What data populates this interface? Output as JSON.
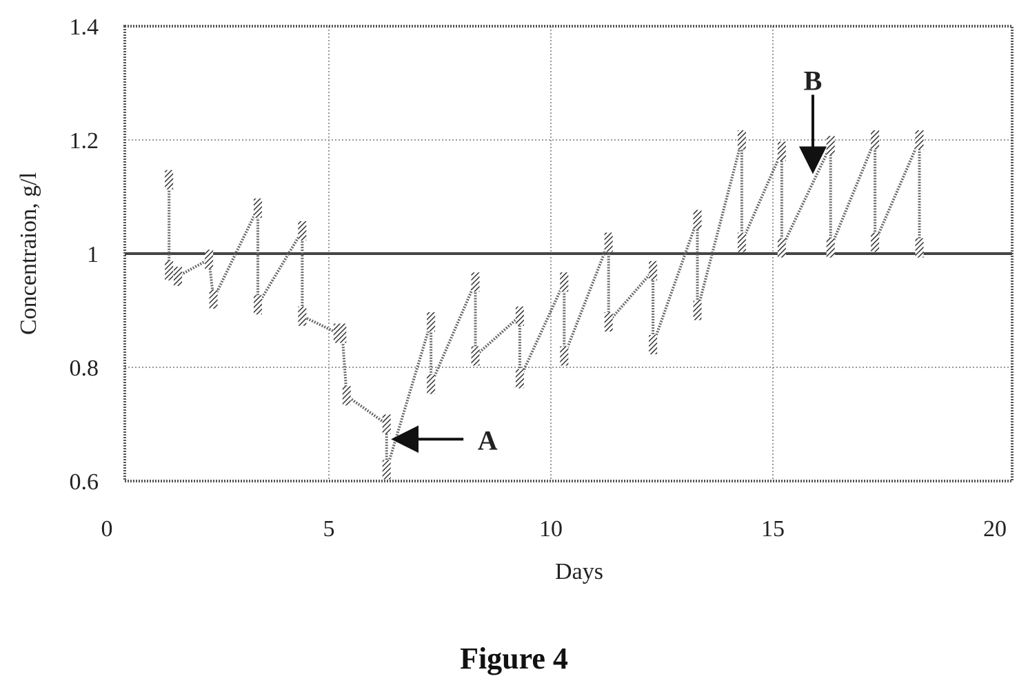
{
  "chart_data": {
    "type": "line",
    "xlabel": "Days",
    "ylabel": "Concentraion, g/l",
    "xlim": [
      0,
      20
    ],
    "ylim": [
      0.6,
      1.4
    ],
    "xticks": [
      "0",
      "5",
      "10",
      "15",
      "20"
    ],
    "yticks": [
      "0.6",
      "0.8",
      "1",
      "1.2",
      "1.4"
    ],
    "grid": true,
    "reference_line": {
      "y": 1.0
    },
    "series": [
      {
        "x": [
          1.4,
          1.4,
          1.6,
          2.3,
          2.4,
          3.4,
          3.4,
          4.4,
          4.4,
          5.2,
          5.3,
          5.4,
          6.3,
          6.3,
          7.3,
          7.3,
          8.3,
          8.3,
          9.3,
          9.3,
          10.3,
          10.3,
          11.3,
          11.3,
          12.3,
          12.3,
          13.3,
          13.3,
          14.3,
          14.3,
          15.2,
          15.2,
          16.3,
          16.3,
          17.3,
          17.3,
          18.3,
          18.3
        ],
        "y": [
          1.13,
          0.97,
          0.96,
          0.99,
          0.92,
          1.08,
          0.91,
          1.04,
          0.89,
          0.86,
          0.86,
          0.75,
          0.7,
          0.62,
          0.88,
          0.77,
          0.95,
          0.82,
          0.89,
          0.78,
          0.95,
          0.82,
          1.02,
          0.88,
          0.97,
          0.84,
          1.06,
          0.9,
          1.2,
          1.02,
          1.18,
          1.01,
          1.19,
          1.01,
          1.2,
          1.02,
          1.2,
          1.01
        ]
      }
    ],
    "annotations": [
      {
        "text": "A",
        "x": 6.4,
        "y": 0.67,
        "arrow": "left"
      },
      {
        "text": "B",
        "x": 15.9,
        "y": 1.14,
        "arrow": "down"
      }
    ]
  },
  "caption": "Figure 4"
}
